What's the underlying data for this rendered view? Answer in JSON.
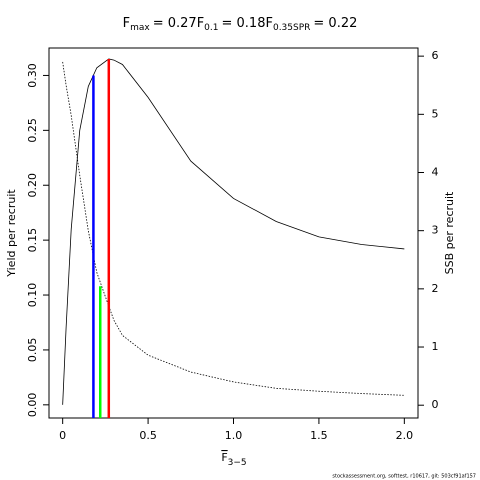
{
  "chart_data": {
    "type": "line",
    "title_items": [
      {
        "symbol": "F",
        "sub": "max",
        "label": "= 0.27",
        "x": 0.27,
        "top": 0.315,
        "color": "#ff0000"
      },
      {
        "symbol": "F",
        "sub": "0.1",
        "label": "= 0.18",
        "x": 0.18,
        "top": 0.3,
        "color": "#0000ff"
      },
      {
        "symbol": "F",
        "sub": "0.35SPR",
        "label": "= 0.22",
        "x": 0.22,
        "top": 0.108,
        "color": "#00ff00"
      }
    ],
    "xlabel": "F",
    "xlabel_sub": "3−5",
    "ylabel": "Yield per recruit",
    "y2label": "SSB per recruit",
    "footer": "stockassessment.org, softtest, r10617, git: 503cf91af157",
    "x": [
      0,
      0.02,
      0.05,
      0.1,
      0.15,
      0.2,
      0.27,
      0.3,
      0.35,
      0.5,
      0.75,
      1,
      1.25,
      1.5,
      1.75,
      2
    ],
    "series": [
      {
        "name": "Yield per recruit",
        "color": "#000000",
        "dash": false,
        "values": [
          0,
          0.07,
          0.16,
          0.25,
          0.29,
          0.307,
          0.315,
          0.314,
          0.31,
          0.28,
          0.222,
          0.188,
          0.167,
          0.153,
          0.146,
          0.142
        ]
      },
      {
        "name": "SSB per recruit",
        "color": "#000000",
        "dash": true,
        "axis": "y2",
        "values": [
          5.9,
          5.5,
          4.98,
          3.95,
          3.0,
          2.28,
          1.7,
          1.46,
          1.2,
          0.86,
          0.57,
          0.4,
          0.29,
          0.24,
          0.2,
          0.17
        ]
      }
    ],
    "xlim": [
      -0.08,
      2.08
    ],
    "xticks": [
      0,
      0.5,
      {
        "value": 1,
        "label": "1.0"
      },
      1.5,
      {
        "value": 2,
        "label": "2.0"
      }
    ],
    "ylim": [
      -0.012,
      0.325
    ],
    "yticks": [
      {
        "value": 0,
        "label": "0.00"
      },
      0.05,
      {
        "value": 0.1,
        "label": "0.10"
      },
      0.15,
      {
        "value": 0.2,
        "label": "0.20"
      },
      0.25,
      {
        "value": 0.3,
        "label": "0.30"
      }
    ],
    "y2lim": [
      -0.22,
      6.14
    ],
    "y2ticks": [
      0,
      1,
      2,
      3,
      4,
      5,
      6
    ]
  }
}
